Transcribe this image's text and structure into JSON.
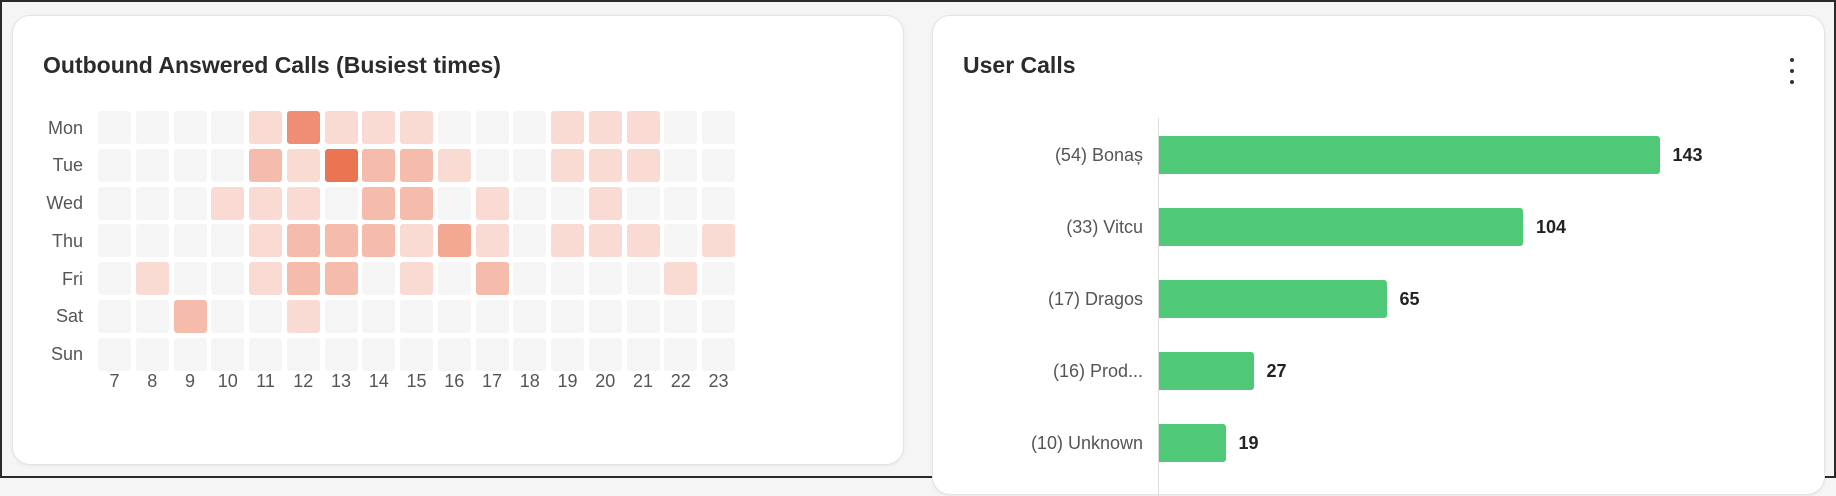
{
  "heatmap": {
    "title": "Outbound Answered Calls (Busiest times)",
    "days": [
      "Mon",
      "Tue",
      "Wed",
      "Thu",
      "Fri",
      "Sat",
      "Sun"
    ],
    "hours": [
      "7",
      "8",
      "9",
      "10",
      "11",
      "12",
      "13",
      "14",
      "15",
      "16",
      "17",
      "18",
      "19",
      "20",
      "21",
      "22",
      "23"
    ],
    "levels": [
      [
        0,
        0,
        0,
        0,
        1,
        4,
        1,
        1,
        1,
        0,
        0,
        0,
        1,
        1,
        1,
        0,
        0
      ],
      [
        0,
        0,
        0,
        0,
        2,
        1,
        5,
        2,
        2,
        1,
        0,
        0,
        1,
        1,
        1,
        0,
        0
      ],
      [
        0,
        0,
        0,
        1,
        1,
        1,
        0,
        2,
        2,
        0,
        1,
        0,
        0,
        1,
        0,
        0,
        0
      ],
      [
        0,
        0,
        0,
        0,
        1,
        2,
        2,
        2,
        1,
        3,
        1,
        0,
        1,
        1,
        1,
        0,
        1
      ],
      [
        0,
        1,
        0,
        0,
        1,
        2,
        2,
        0,
        1,
        0,
        2,
        0,
        0,
        0,
        0,
        1,
        0
      ],
      [
        0,
        0,
        2,
        0,
        0,
        1,
        0,
        0,
        0,
        0,
        0,
        0,
        0,
        0,
        0,
        0,
        0
      ],
      [
        0,
        0,
        0,
        0,
        0,
        0,
        0,
        0,
        0,
        0,
        0,
        0,
        0,
        0,
        0,
        0,
        0
      ]
    ],
    "palette": [
      "#f5f5f5",
      "#fadbd3",
      "#f5bcab",
      "#f3a892",
      "#ef8e74",
      "#ea7553"
    ]
  },
  "user_calls": {
    "title": "User Calls",
    "menu_icon": "kebab-menu-icon",
    "bar_color": "#4fc978",
    "xlim": [
      0,
      150
    ]
  },
  "chart_data": {
    "type": "bar",
    "orientation": "horizontal",
    "title": "User Calls",
    "categories": [
      "(54) Bonaș",
      "(33) Vitcu",
      "(17)  Dragos",
      "(16) Prod...",
      "(10) Unknown"
    ],
    "values": [
      143,
      104,
      65,
      27,
      19
    ],
    "labels": [
      "143",
      "104",
      "65",
      "27",
      "19"
    ]
  }
}
